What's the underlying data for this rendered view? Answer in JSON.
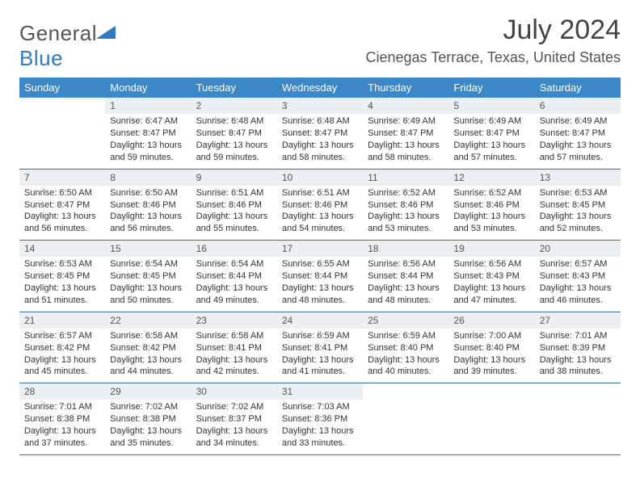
{
  "logo": {
    "word1": "General",
    "word2": "Blue"
  },
  "title": "July 2024",
  "location": "Cienegas Terrace, Texas, United States",
  "colors": {
    "header_bg": "#3b87c8",
    "header_text": "#ffffff",
    "daynum_bg": "#eceff1",
    "rule": "#2f6ea8",
    "logo_blue": "#2f7ac0",
    "body_text": "#333333"
  },
  "days_of_week": [
    "Sunday",
    "Monday",
    "Tuesday",
    "Wednesday",
    "Thursday",
    "Friday",
    "Saturday"
  ],
  "weeks": [
    [
      {
        "n": "",
        "lines": []
      },
      {
        "n": "1",
        "lines": [
          "Sunrise: 6:47 AM",
          "Sunset: 8:47 PM",
          "Daylight: 13 hours",
          "and 59 minutes."
        ]
      },
      {
        "n": "2",
        "lines": [
          "Sunrise: 6:48 AM",
          "Sunset: 8:47 PM",
          "Daylight: 13 hours",
          "and 59 minutes."
        ]
      },
      {
        "n": "3",
        "lines": [
          "Sunrise: 6:48 AM",
          "Sunset: 8:47 PM",
          "Daylight: 13 hours",
          "and 58 minutes."
        ]
      },
      {
        "n": "4",
        "lines": [
          "Sunrise: 6:49 AM",
          "Sunset: 8:47 PM",
          "Daylight: 13 hours",
          "and 58 minutes."
        ]
      },
      {
        "n": "5",
        "lines": [
          "Sunrise: 6:49 AM",
          "Sunset: 8:47 PM",
          "Daylight: 13 hours",
          "and 57 minutes."
        ]
      },
      {
        "n": "6",
        "lines": [
          "Sunrise: 6:49 AM",
          "Sunset: 8:47 PM",
          "Daylight: 13 hours",
          "and 57 minutes."
        ]
      }
    ],
    [
      {
        "n": "7",
        "lines": [
          "Sunrise: 6:50 AM",
          "Sunset: 8:47 PM",
          "Daylight: 13 hours",
          "and 56 minutes."
        ]
      },
      {
        "n": "8",
        "lines": [
          "Sunrise: 6:50 AM",
          "Sunset: 8:46 PM",
          "Daylight: 13 hours",
          "and 56 minutes."
        ]
      },
      {
        "n": "9",
        "lines": [
          "Sunrise: 6:51 AM",
          "Sunset: 8:46 PM",
          "Daylight: 13 hours",
          "and 55 minutes."
        ]
      },
      {
        "n": "10",
        "lines": [
          "Sunrise: 6:51 AM",
          "Sunset: 8:46 PM",
          "Daylight: 13 hours",
          "and 54 minutes."
        ]
      },
      {
        "n": "11",
        "lines": [
          "Sunrise: 6:52 AM",
          "Sunset: 8:46 PM",
          "Daylight: 13 hours",
          "and 53 minutes."
        ]
      },
      {
        "n": "12",
        "lines": [
          "Sunrise: 6:52 AM",
          "Sunset: 8:46 PM",
          "Daylight: 13 hours",
          "and 53 minutes."
        ]
      },
      {
        "n": "13",
        "lines": [
          "Sunrise: 6:53 AM",
          "Sunset: 8:45 PM",
          "Daylight: 13 hours",
          "and 52 minutes."
        ]
      }
    ],
    [
      {
        "n": "14",
        "lines": [
          "Sunrise: 6:53 AM",
          "Sunset: 8:45 PM",
          "Daylight: 13 hours",
          "and 51 minutes."
        ]
      },
      {
        "n": "15",
        "lines": [
          "Sunrise: 6:54 AM",
          "Sunset: 8:45 PM",
          "Daylight: 13 hours",
          "and 50 minutes."
        ]
      },
      {
        "n": "16",
        "lines": [
          "Sunrise: 6:54 AM",
          "Sunset: 8:44 PM",
          "Daylight: 13 hours",
          "and 49 minutes."
        ]
      },
      {
        "n": "17",
        "lines": [
          "Sunrise: 6:55 AM",
          "Sunset: 8:44 PM",
          "Daylight: 13 hours",
          "and 48 minutes."
        ]
      },
      {
        "n": "18",
        "lines": [
          "Sunrise: 6:56 AM",
          "Sunset: 8:44 PM",
          "Daylight: 13 hours",
          "and 48 minutes."
        ]
      },
      {
        "n": "19",
        "lines": [
          "Sunrise: 6:56 AM",
          "Sunset: 8:43 PM",
          "Daylight: 13 hours",
          "and 47 minutes."
        ]
      },
      {
        "n": "20",
        "lines": [
          "Sunrise: 6:57 AM",
          "Sunset: 8:43 PM",
          "Daylight: 13 hours",
          "and 46 minutes."
        ]
      }
    ],
    [
      {
        "n": "21",
        "lines": [
          "Sunrise: 6:57 AM",
          "Sunset: 8:42 PM",
          "Daylight: 13 hours",
          "and 45 minutes."
        ]
      },
      {
        "n": "22",
        "lines": [
          "Sunrise: 6:58 AM",
          "Sunset: 8:42 PM",
          "Daylight: 13 hours",
          "and 44 minutes."
        ]
      },
      {
        "n": "23",
        "lines": [
          "Sunrise: 6:58 AM",
          "Sunset: 8:41 PM",
          "Daylight: 13 hours",
          "and 42 minutes."
        ]
      },
      {
        "n": "24",
        "lines": [
          "Sunrise: 6:59 AM",
          "Sunset: 8:41 PM",
          "Daylight: 13 hours",
          "and 41 minutes."
        ]
      },
      {
        "n": "25",
        "lines": [
          "Sunrise: 6:59 AM",
          "Sunset: 8:40 PM",
          "Daylight: 13 hours",
          "and 40 minutes."
        ]
      },
      {
        "n": "26",
        "lines": [
          "Sunrise: 7:00 AM",
          "Sunset: 8:40 PM",
          "Daylight: 13 hours",
          "and 39 minutes."
        ]
      },
      {
        "n": "27",
        "lines": [
          "Sunrise: 7:01 AM",
          "Sunset: 8:39 PM",
          "Daylight: 13 hours",
          "and 38 minutes."
        ]
      }
    ],
    [
      {
        "n": "28",
        "lines": [
          "Sunrise: 7:01 AM",
          "Sunset: 8:38 PM",
          "Daylight: 13 hours",
          "and 37 minutes."
        ]
      },
      {
        "n": "29",
        "lines": [
          "Sunrise: 7:02 AM",
          "Sunset: 8:38 PM",
          "Daylight: 13 hours",
          "and 35 minutes."
        ]
      },
      {
        "n": "30",
        "lines": [
          "Sunrise: 7:02 AM",
          "Sunset: 8:37 PM",
          "Daylight: 13 hours",
          "and 34 minutes."
        ]
      },
      {
        "n": "31",
        "lines": [
          "Sunrise: 7:03 AM",
          "Sunset: 8:36 PM",
          "Daylight: 13 hours",
          "and 33 minutes."
        ]
      },
      {
        "n": "",
        "lines": []
      },
      {
        "n": "",
        "lines": []
      },
      {
        "n": "",
        "lines": []
      }
    ]
  ]
}
